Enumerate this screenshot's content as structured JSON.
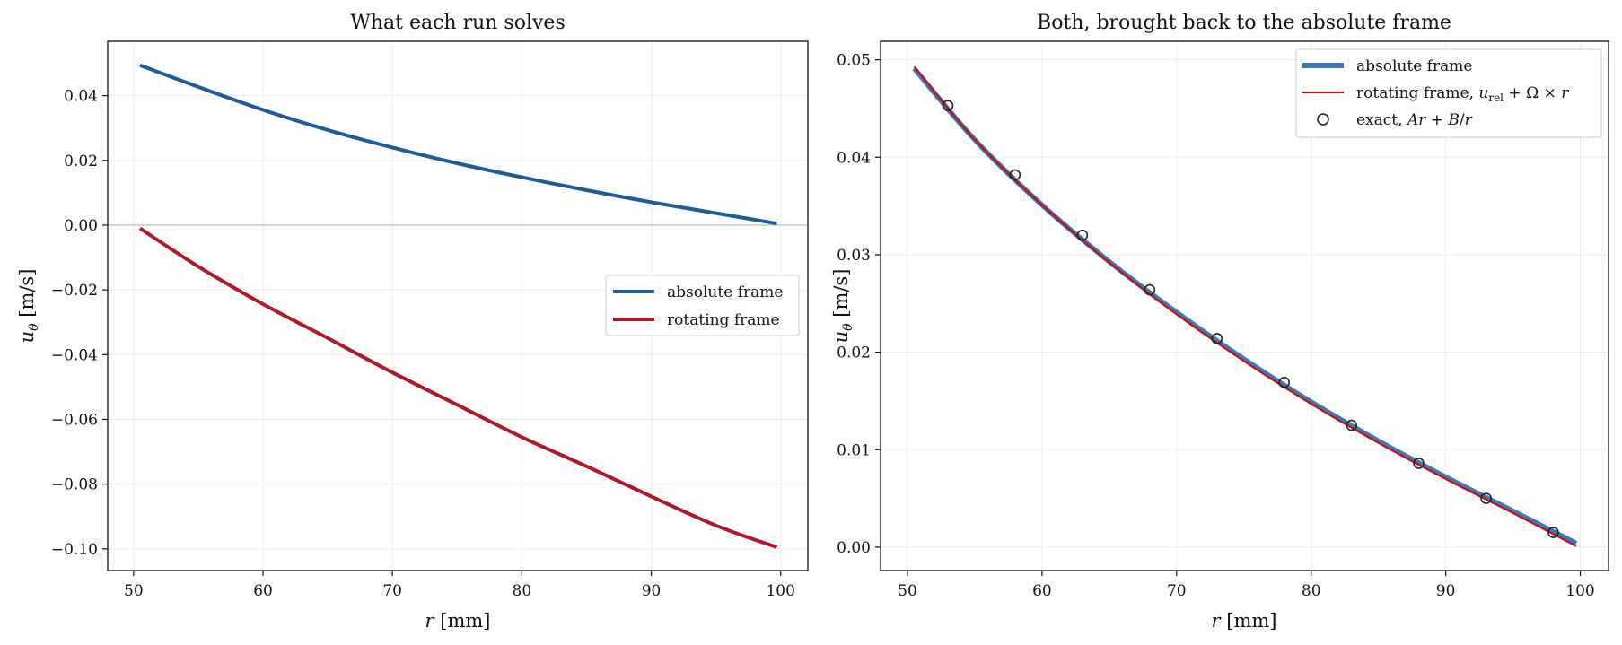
{
  "colors": {
    "absolute": "#1f5a99",
    "rotating": "#b0192c",
    "absolute_right": "#3f78b4",
    "rotating_right": "#c0101a",
    "grid": "#ebebeb",
    "zero_line": "#c8c8c8",
    "markers": "#222222"
  },
  "chart_data": [
    {
      "type": "line",
      "title": "What each run solves",
      "xlabel": "r [mm]",
      "ylabel": "u_θ [m/s]",
      "xlim": [
        48.0,
        102.1
      ],
      "ylim": [
        -0.1067,
        0.0568
      ],
      "xticks": [
        50,
        60,
        70,
        80,
        90,
        100
      ],
      "xtick_labels": [
        "50",
        "60",
        "70",
        "80",
        "90",
        "100"
      ],
      "yticks": [
        0.04,
        0.02,
        0.0,
        -0.02,
        -0.04,
        -0.06,
        -0.08,
        -0.1
      ],
      "ytick_labels": [
        "0.04",
        "0.02",
        "0.00",
        "−0.02",
        "−0.04",
        "−0.06",
        "−0.08",
        "−0.10"
      ],
      "grid": true,
      "zero_line": true,
      "legend": "center-right",
      "series": [
        {
          "name": "absolute frame",
          "style": "line",
          "x": [
            50.5,
            55,
            60,
            65,
            70,
            75,
            80,
            85,
            90,
            95,
            99.7
          ],
          "y": [
            0.0494,
            0.0427,
            0.0356,
            0.0294,
            0.024,
            0.0191,
            0.0148,
            0.0108,
            0.0071,
            0.0037,
            0.0005
          ]
        },
        {
          "name": "rotating frame",
          "style": "line",
          "x": [
            50.5,
            55,
            60,
            65,
            70,
            75,
            80,
            85,
            90,
            95,
            99.7
          ],
          "y": [
            -0.001,
            -0.0128,
            -0.0244,
            -0.0349,
            -0.0455,
            -0.0555,
            -0.0655,
            -0.0745,
            -0.0838,
            -0.0928,
            -0.0995
          ]
        }
      ]
    },
    {
      "type": "line",
      "title": "Both, brought back to the absolute frame",
      "xlabel": "r [mm]",
      "ylabel": "u_θ [m/s]",
      "xlim": [
        48.0,
        102.1
      ],
      "ylim": [
        -0.0024,
        0.0519
      ],
      "xticks": [
        50,
        60,
        70,
        80,
        90,
        100
      ],
      "xtick_labels": [
        "50",
        "60",
        "70",
        "80",
        "90",
        "100"
      ],
      "yticks": [
        0.05,
        0.04,
        0.03,
        0.02,
        0.01,
        0.0
      ],
      "ytick_labels": [
        "0.05",
        "0.04",
        "0.03",
        "0.02",
        "0.01",
        "0.00"
      ],
      "grid": true,
      "legend": "top-right",
      "series": [
        {
          "name": "absolute frame",
          "style": "thick-line",
          "x": [
            50.5,
            55,
            60,
            65,
            70,
            75,
            80,
            85,
            90,
            95,
            99.7
          ],
          "y": [
            0.0491,
            0.0418,
            0.0351,
            0.0293,
            0.0241,
            0.0193,
            0.0149,
            0.0109,
            0.0072,
            0.0037,
            0.0004
          ]
        },
        {
          "name": "rotating frame, u_rel + Ω × r",
          "style": "thin-line",
          "x": [
            50.5,
            55,
            60,
            65,
            70,
            75,
            80,
            85,
            90,
            95,
            99.7
          ],
          "y": [
            0.0493,
            0.0418,
            0.0351,
            0.0292,
            0.0239,
            0.0191,
            0.0147,
            0.0107,
            0.007,
            0.0035,
            0.0001
          ]
        },
        {
          "name": "exact, Ar + B/r",
          "style": "markers",
          "x": [
            53,
            58,
            63,
            68,
            73,
            78,
            83,
            88,
            93,
            98
          ],
          "y": [
            0.0453,
            0.0382,
            0.032,
            0.0264,
            0.0214,
            0.0169,
            0.0125,
            0.0086,
            0.005,
            0.0015
          ]
        }
      ]
    }
  ]
}
